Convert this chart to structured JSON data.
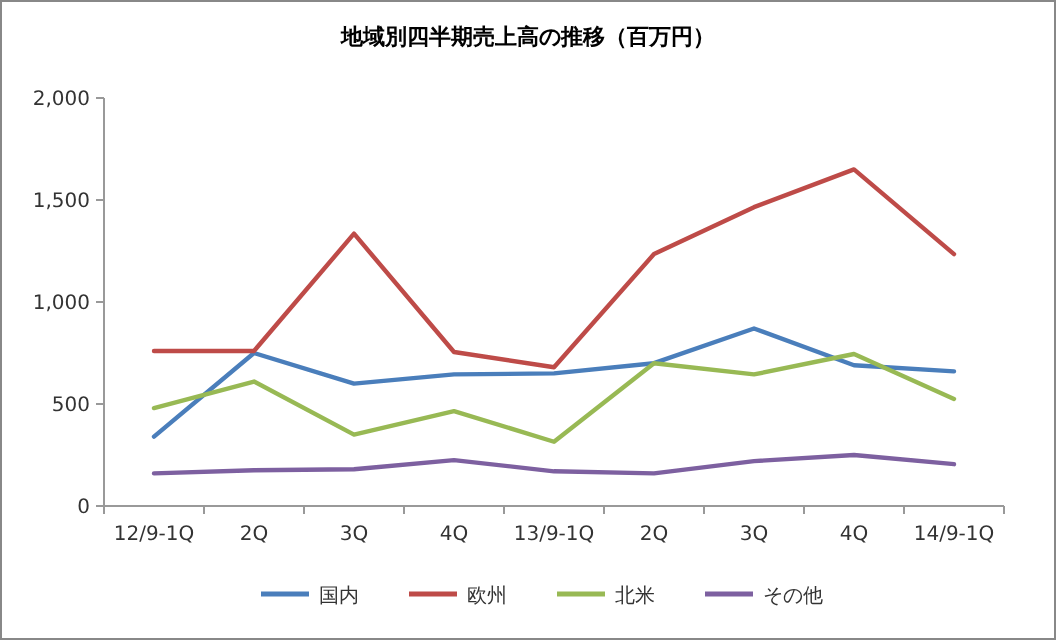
{
  "chart_data": {
    "type": "line",
    "title": "地域別四半期売上高の推移（百万円）",
    "categories": [
      "12/9-1Q",
      "2Q",
      "3Q",
      "4Q",
      "13/9-1Q",
      "2Q",
      "3Q",
      "4Q",
      "14/9-1Q"
    ],
    "series": [
      {
        "name": "国内",
        "color": "#4a7ebb",
        "values": [
          340,
          750,
          600,
          645,
          650,
          700,
          870,
          690,
          660
        ]
      },
      {
        "name": "欧州",
        "color": "#be4b48",
        "values": [
          760,
          760,
          1335,
          755,
          680,
          1235,
          1465,
          1650,
          1235
        ]
      },
      {
        "name": "北米",
        "color": "#98b954",
        "values": [
          480,
          610,
          350,
          465,
          315,
          700,
          645,
          745,
          525
        ]
      },
      {
        "name": "その他",
        "color": "#7d60a0",
        "values": [
          160,
          175,
          180,
          225,
          170,
          160,
          220,
          250,
          205
        ]
      }
    ],
    "ylim": [
      0,
      2000
    ],
    "yticks": [
      {
        "value": 0,
        "label": "0"
      },
      {
        "value": 500,
        "label": "500"
      },
      {
        "value": 1000,
        "label": "1,000"
      },
      {
        "value": 1500,
        "label": "1,500"
      },
      {
        "value": 2000,
        "label": "2,000"
      }
    ],
    "legend": "bottom"
  }
}
